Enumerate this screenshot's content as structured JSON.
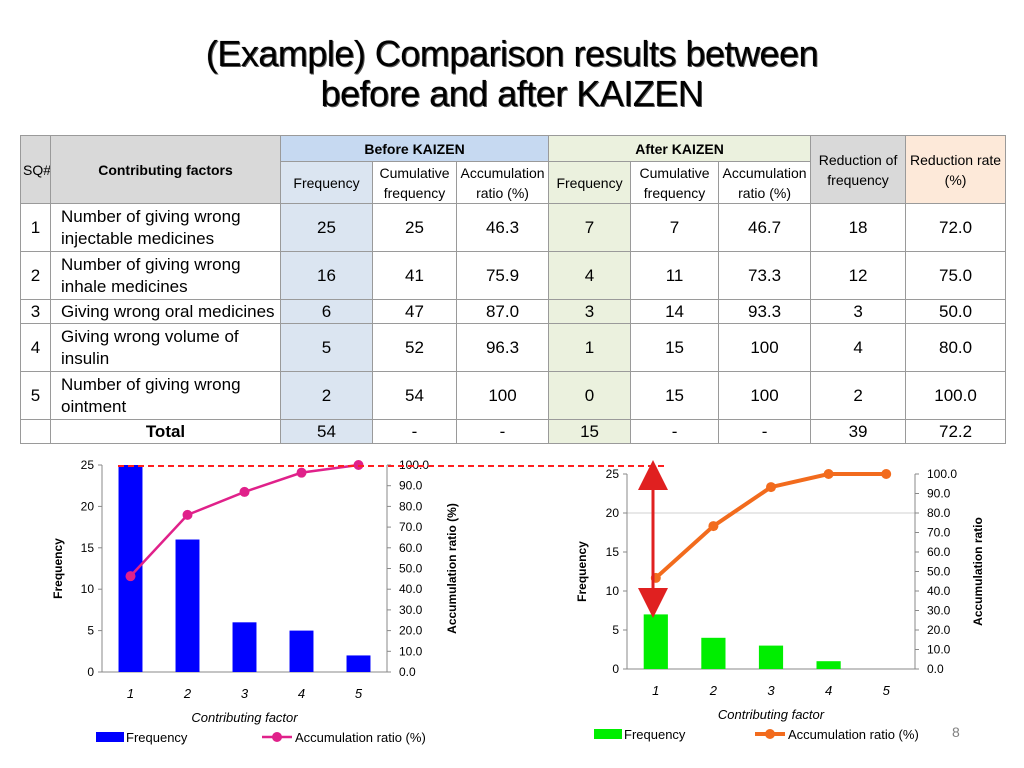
{
  "title_line1": "(Example) Comparison results between",
  "title_line2": "before and after KAIZEN",
  "page_number": "8",
  "table": {
    "headers": {
      "sq": "SQ#",
      "factors": "Contributing factors",
      "before": "Before KAIZEN",
      "after": "After KAIZEN",
      "frequency": "Frequency",
      "cumulative": "Cumulative frequency",
      "accumulation": "Accumulation ratio (%)",
      "reduction_freq": "Reduction of frequency",
      "reduction_rate": "Reduction rate (%)"
    },
    "rows": [
      {
        "sq": "1",
        "factor": "Number of giving wrong injectable medicines",
        "b_freq": "25",
        "b_cum": "25",
        "b_acc": "46.3",
        "a_freq": "7",
        "a_cum": "7",
        "a_acc": "46.7",
        "red_freq": "18",
        "red_rate": "72.0"
      },
      {
        "sq": "2",
        "factor": "Number of giving wrong inhale medicines",
        "b_freq": "16",
        "b_cum": "41",
        "b_acc": "75.9",
        "a_freq": "4",
        "a_cum": "11",
        "a_acc": "73.3",
        "red_freq": "12",
        "red_rate": "75.0"
      },
      {
        "sq": "3",
        "factor": "Giving wrong oral medicines",
        "b_freq": "6",
        "b_cum": "47",
        "b_acc": "87.0",
        "a_freq": "3",
        "a_cum": "14",
        "a_acc": "93.3",
        "red_freq": "3",
        "red_rate": "50.0"
      },
      {
        "sq": "4",
        "factor": "Giving wrong volume of insulin",
        "b_freq": "5",
        "b_cum": "52",
        "b_acc": "96.3",
        "a_freq": "1",
        "a_cum": "15",
        "a_acc": "100",
        "red_freq": "4",
        "red_rate": "80.0"
      },
      {
        "sq": "5",
        "factor": "Number of giving wrong ointment",
        "b_freq": "2",
        "b_cum": "54",
        "b_acc": "100",
        "a_freq": "0",
        "a_cum": "15",
        "a_acc": "100",
        "red_freq": "2",
        "red_rate": "100.0"
      }
    ],
    "total": {
      "label": "Total",
      "b_freq": "54",
      "b_cum": "-",
      "b_acc": "-",
      "a_freq": "15",
      "a_cum": "-",
      "a_acc": "-",
      "red_freq": "39",
      "red_rate": "72.2"
    }
  },
  "chart_data": [
    {
      "type": "bar",
      "categories": [
        "1",
        "2",
        "3",
        "4",
        "5"
      ],
      "series": [
        {
          "name": "Frequency",
          "kind": "bar",
          "axis": "left",
          "color": "#0000ff",
          "values": [
            25,
            16,
            6,
            5,
            2
          ]
        },
        {
          "name": "Accumulation ratio (%)",
          "kind": "line",
          "axis": "right",
          "color": "#e0218a",
          "values": [
            46.3,
            75.9,
            87.0,
            96.3,
            100
          ]
        }
      ],
      "xlabel": "Contributing factor",
      "ylabel": "Frequency",
      "y2label": "Accumulation ratio (%)",
      "ylim": [
        0,
        25
      ],
      "y2lim": [
        0,
        100
      ],
      "yticks": [
        "0",
        "5",
        "10",
        "15",
        "20",
        "25"
      ],
      "y2ticks": [
        "0.0",
        "10.0",
        "20.0",
        "30.0",
        "40.0",
        "50.0",
        "60.0",
        "70.0",
        "80.0",
        "90.0",
        "100.0"
      ],
      "legend": "bottom"
    },
    {
      "type": "bar",
      "categories": [
        "1",
        "2",
        "3",
        "4",
        "5"
      ],
      "series": [
        {
          "name": "Frequency",
          "kind": "bar",
          "axis": "left",
          "color": "#00ee00",
          "values": [
            7,
            4,
            3,
            1,
            0
          ]
        },
        {
          "name": "Accumulation ratio (%)",
          "kind": "line",
          "axis": "right",
          "color": "#f26b1d",
          "values": [
            46.7,
            73.3,
            93.3,
            100,
            100
          ]
        }
      ],
      "xlabel": "Contributing factor",
      "ylabel": "Frequency",
      "y2label": "Accumulation ratio",
      "ylim": [
        0,
        25
      ],
      "y2lim": [
        0,
        100
      ],
      "yticks": [
        "0",
        "5",
        "10",
        "15",
        "20",
        "25"
      ],
      "y2ticks": [
        "0.0",
        "10.0",
        "20.0",
        "30.0",
        "40.0",
        "50.0",
        "60.0",
        "70.0",
        "80.0",
        "90.0",
        "100.0"
      ],
      "legend": "bottom"
    }
  ]
}
